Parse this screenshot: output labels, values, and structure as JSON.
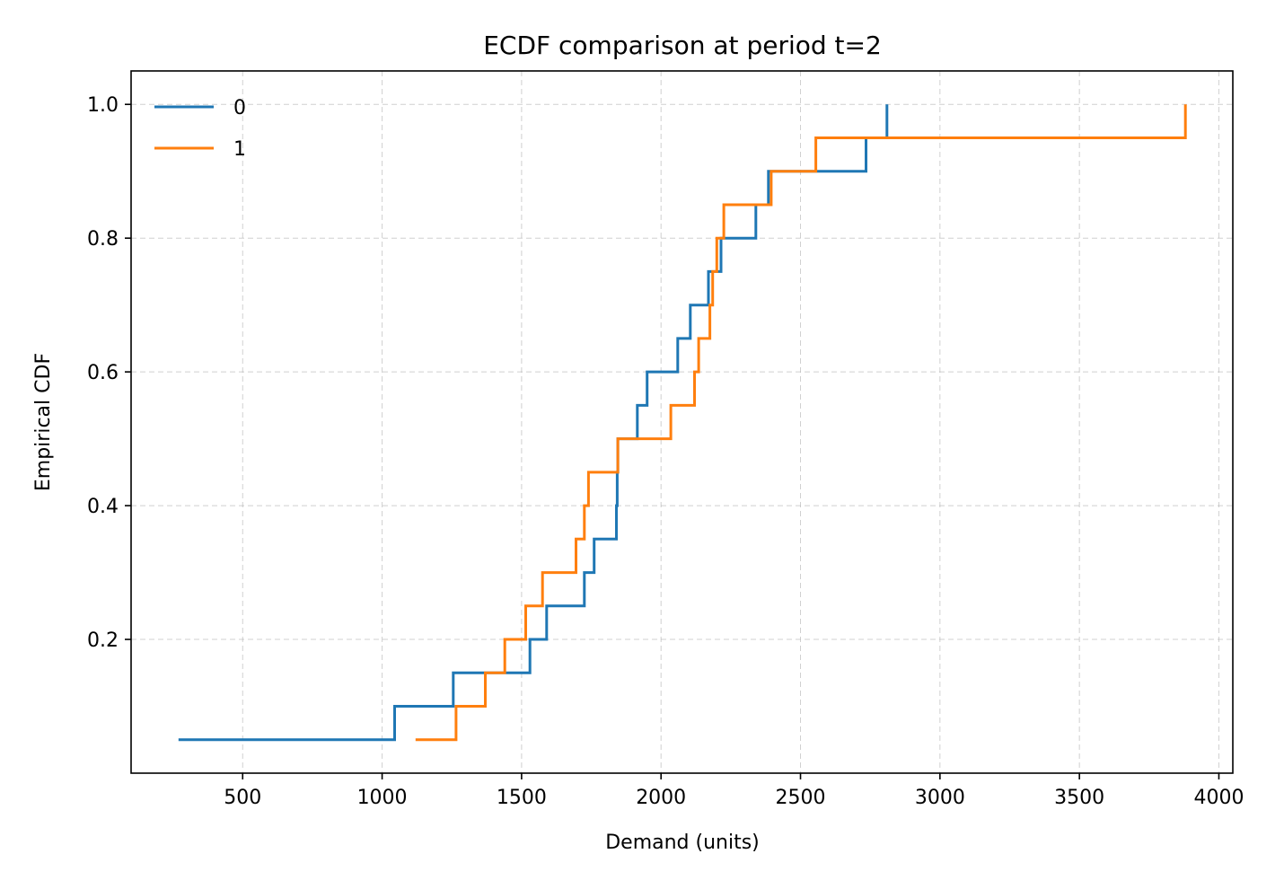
{
  "chart_data": {
    "type": "line",
    "step": "post",
    "title": "ECDF comparison at period t=2",
    "xlabel": "Demand (units)",
    "ylabel": "Empirical CDF",
    "xlim": [
      100,
      4050
    ],
    "ylim": [
      0.0,
      1.05
    ],
    "xticks": [
      500,
      1000,
      1500,
      2000,
      2500,
      3000,
      3500,
      4000
    ],
    "yticks": [
      0.2,
      0.4,
      0.6,
      0.8,
      1.0
    ],
    "xtick_labels": [
      "500",
      "1000",
      "1500",
      "2000",
      "2500",
      "3000",
      "3500",
      "4000"
    ],
    "ytick_labels": [
      "0.2",
      "0.4",
      "0.6",
      "0.8",
      "1.0"
    ],
    "grid": true,
    "legend_position": "top-left",
    "series": [
      {
        "name": "0",
        "color": "#1f77b4",
        "x": [
          270,
          1045,
          1255,
          1530,
          1590,
          1725,
          1760,
          1840,
          1843,
          1845,
          1915,
          1950,
          2060,
          2105,
          2170,
          2215,
          2340,
          2385,
          2735,
          2810
        ],
        "y": [
          0.05,
          0.1,
          0.15,
          0.2,
          0.25,
          0.3,
          0.35,
          0.4,
          0.45,
          0.5,
          0.55,
          0.6,
          0.65,
          0.7,
          0.75,
          0.8,
          0.85,
          0.9,
          0.95,
          1.0
        ]
      },
      {
        "name": "1",
        "color": "#ff7f0e",
        "x": [
          1120,
          1265,
          1370,
          1440,
          1515,
          1575,
          1695,
          1725,
          1740,
          1845,
          2035,
          2120,
          2135,
          2175,
          2185,
          2200,
          2225,
          2395,
          2555,
          3880
        ],
        "y": [
          0.05,
          0.1,
          0.15,
          0.2,
          0.25,
          0.3,
          0.35,
          0.4,
          0.45,
          0.5,
          0.55,
          0.6,
          0.65,
          0.7,
          0.75,
          0.8,
          0.85,
          0.9,
          0.95,
          1.0
        ]
      }
    ]
  }
}
